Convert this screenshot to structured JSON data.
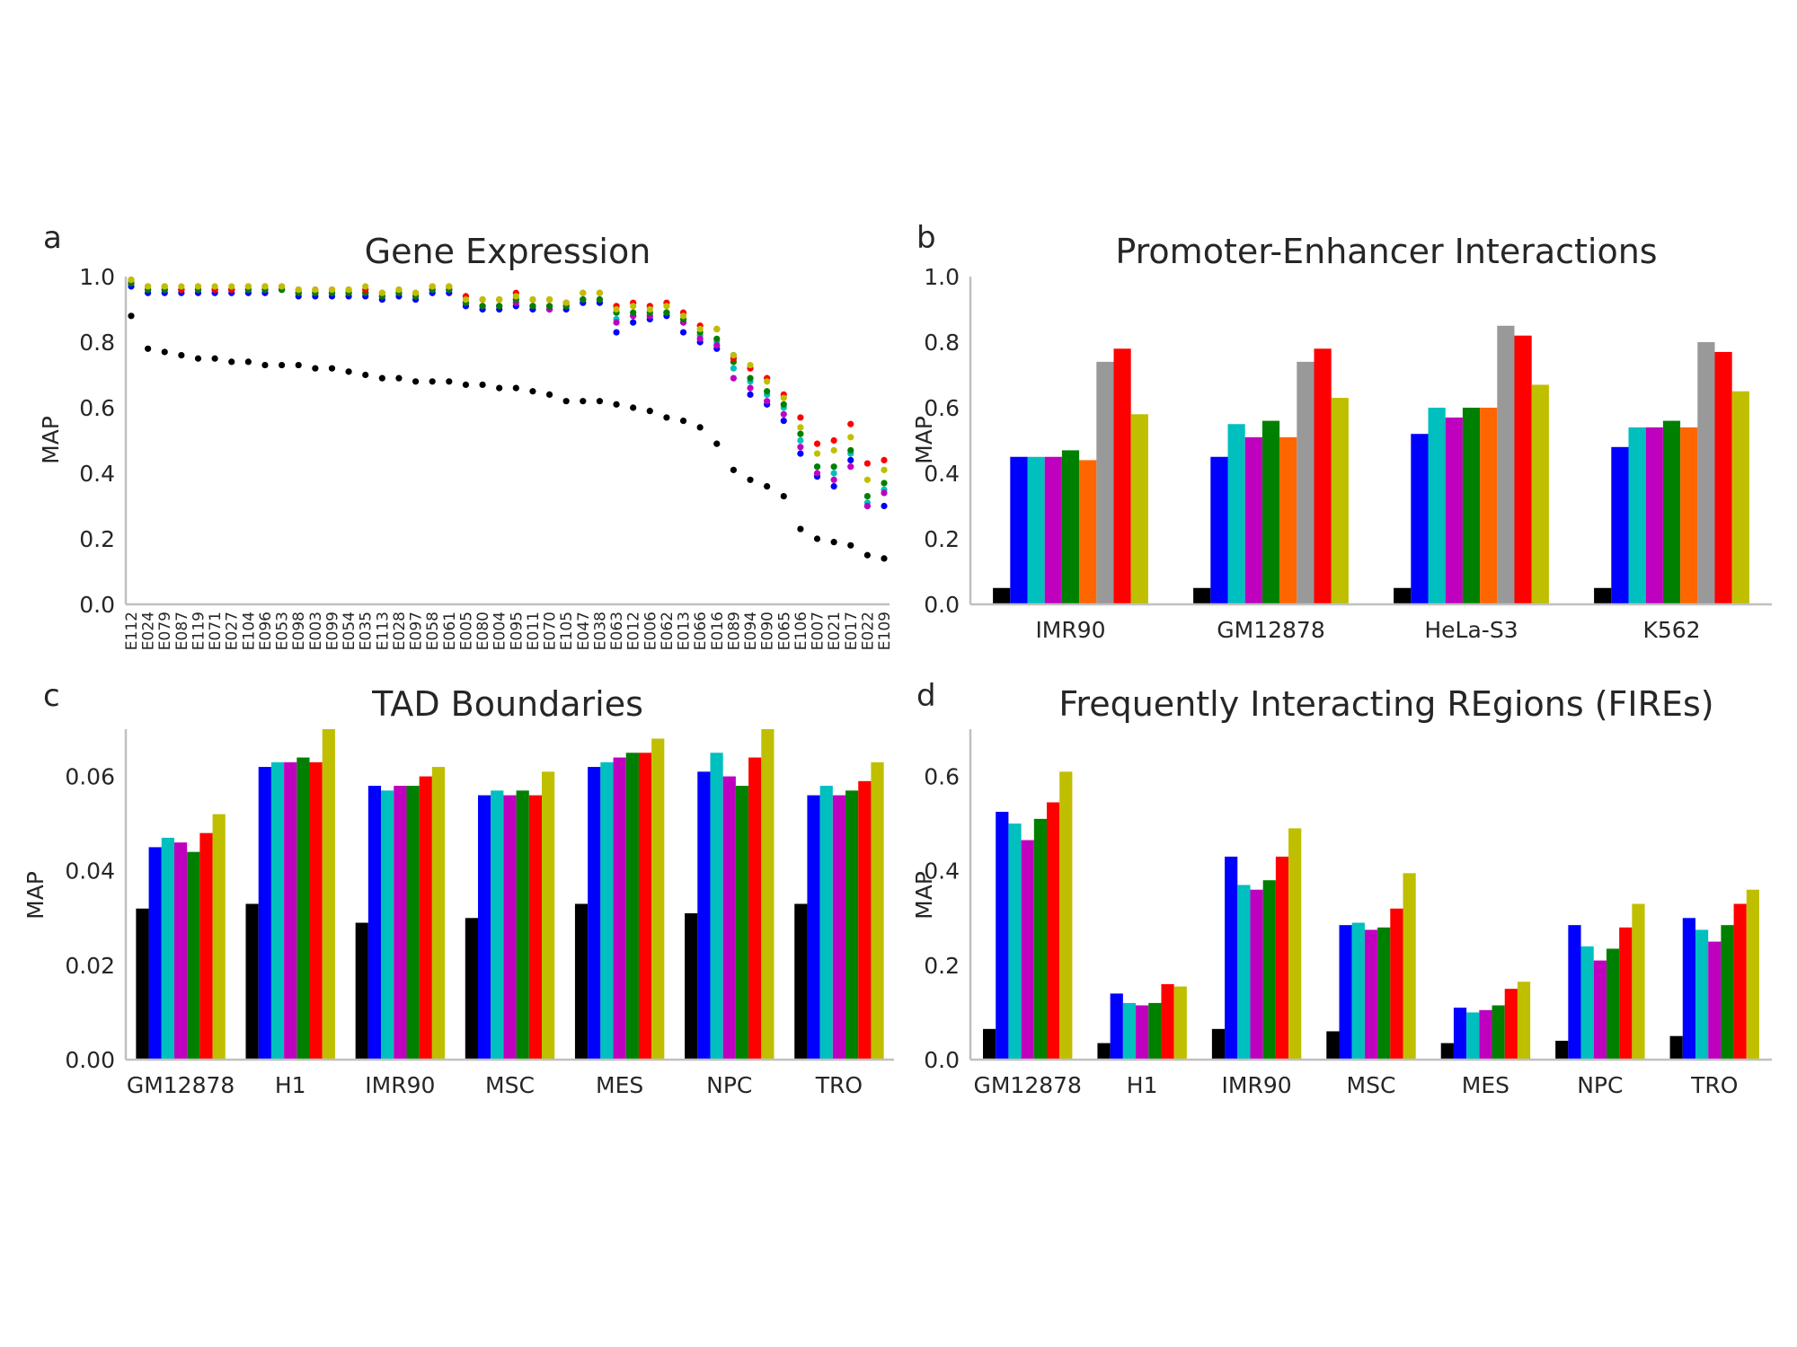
{
  "colors": [
    "#000000",
    "#0000ff",
    "#00bfbf",
    "#bf00bf",
    "#008000",
    "#ff6600",
    "#999999",
    "#ff0000",
    "#bfbf00"
  ],
  "chart_data": [
    {
      "panel": "a",
      "type": "scatter",
      "title": "Gene Expression",
      "ylabel": "MAP",
      "xlabel": "",
      "ylim": [
        0,
        1.0
      ],
      "yticks": [
        "0.0",
        "0.2",
        "0.4",
        "0.6",
        "0.8",
        "1.0"
      ],
      "grid": false,
      "categories": [
        "E112",
        "E024",
        "E079",
        "E087",
        "E119",
        "E071",
        "E027",
        "E104",
        "E096",
        "E053",
        "E098",
        "E003",
        "E099",
        "E054",
        "E035",
        "E113",
        "E028",
        "E097",
        "E058",
        "E061",
        "E005",
        "E080",
        "E004",
        "E095",
        "E011",
        "E070",
        "E105",
        "E047",
        "E038",
        "E063",
        "E012",
        "E006",
        "E062",
        "E013",
        "E066",
        "E016",
        "E089",
        "E094",
        "E090",
        "E065",
        "E106",
        "E007",
        "E021",
        "E017",
        "E022",
        "E109"
      ],
      "series": [
        {
          "color_index": 0,
          "values": [
            0.88,
            0.78,
            0.77,
            0.76,
            0.75,
            0.75,
            0.74,
            0.74,
            0.73,
            0.73,
            0.73,
            0.72,
            0.72,
            0.71,
            0.7,
            0.69,
            0.69,
            0.68,
            0.68,
            0.68,
            0.67,
            0.67,
            0.66,
            0.66,
            0.65,
            0.64,
            0.62,
            0.62,
            0.62,
            0.61,
            0.6,
            0.59,
            0.57,
            0.56,
            0.54,
            0.49,
            0.41,
            0.38,
            0.36,
            0.33,
            0.23,
            0.2,
            0.19,
            0.18,
            0.15,
            0.14
          ]
        },
        {
          "color_index": 1,
          "values": [
            0.97,
            0.95,
            0.95,
            0.95,
            0.95,
            0.95,
            0.95,
            0.95,
            0.95,
            0.96,
            0.94,
            0.94,
            0.94,
            0.94,
            0.94,
            0.93,
            0.94,
            0.93,
            0.95,
            0.95,
            0.91,
            0.9,
            0.9,
            0.91,
            0.9,
            0.9,
            0.9,
            0.92,
            0.92,
            0.83,
            0.86,
            0.87,
            0.88,
            0.83,
            0.8,
            0.78,
            0.76,
            0.64,
            0.61,
            0.56,
            0.46,
            0.39,
            0.36,
            0.44,
            0.3,
            0.3
          ]
        },
        {
          "color_index": 2,
          "values": [
            0.98,
            0.96,
            0.96,
            0.96,
            0.96,
            0.96,
            0.96,
            0.96,
            0.96,
            0.96,
            0.95,
            0.95,
            0.95,
            0.95,
            0.95,
            0.94,
            0.95,
            0.94,
            0.96,
            0.96,
            0.92,
            0.91,
            0.91,
            0.93,
            0.91,
            0.91,
            0.91,
            0.93,
            0.93,
            0.87,
            0.88,
            0.88,
            0.89,
            0.86,
            0.82,
            0.8,
            0.72,
            0.68,
            0.64,
            0.6,
            0.5,
            0.42,
            0.4,
            0.46,
            0.31,
            0.35
          ]
        },
        {
          "color_index": 3,
          "values": [
            0.98,
            0.96,
            0.96,
            0.96,
            0.96,
            0.96,
            0.96,
            0.96,
            0.96,
            0.96,
            0.95,
            0.95,
            0.95,
            0.95,
            0.95,
            0.94,
            0.95,
            0.94,
            0.96,
            0.96,
            0.92,
            0.91,
            0.91,
            0.92,
            0.91,
            0.9,
            0.91,
            0.93,
            0.93,
            0.86,
            0.88,
            0.88,
            0.89,
            0.86,
            0.81,
            0.79,
            0.69,
            0.66,
            0.62,
            0.58,
            0.48,
            0.4,
            0.38,
            0.42,
            0.3,
            0.34
          ]
        },
        {
          "color_index": 4,
          "values": [
            0.98,
            0.96,
            0.96,
            0.96,
            0.96,
            0.96,
            0.96,
            0.96,
            0.96,
            0.96,
            0.95,
            0.95,
            0.95,
            0.95,
            0.95,
            0.94,
            0.95,
            0.94,
            0.96,
            0.96,
            0.92,
            0.91,
            0.91,
            0.93,
            0.91,
            0.91,
            0.91,
            0.93,
            0.93,
            0.89,
            0.89,
            0.89,
            0.89,
            0.87,
            0.83,
            0.81,
            0.74,
            0.69,
            0.65,
            0.61,
            0.52,
            0.42,
            0.42,
            0.47,
            0.33,
            0.37
          ]
        },
        {
          "color_index": 7,
          "values": [
            0.99,
            0.97,
            0.97,
            0.96,
            0.97,
            0.96,
            0.96,
            0.97,
            0.97,
            0.97,
            0.96,
            0.96,
            0.96,
            0.96,
            0.96,
            0.95,
            0.96,
            0.95,
            0.97,
            0.97,
            0.94,
            0.93,
            0.93,
            0.95,
            0.93,
            0.93,
            0.92,
            0.95,
            0.95,
            0.91,
            0.92,
            0.91,
            0.92,
            0.89,
            0.85,
            0.84,
            0.75,
            0.72,
            0.69,
            0.64,
            0.57,
            0.49,
            0.5,
            0.55,
            0.43,
            0.44
          ]
        },
        {
          "color_index": 8,
          "values": [
            0.99,
            0.97,
            0.97,
            0.97,
            0.97,
            0.97,
            0.97,
            0.97,
            0.97,
            0.97,
            0.96,
            0.96,
            0.96,
            0.96,
            0.97,
            0.95,
            0.96,
            0.95,
            0.97,
            0.97,
            0.93,
            0.93,
            0.93,
            0.94,
            0.93,
            0.93,
            0.92,
            0.95,
            0.95,
            0.9,
            0.91,
            0.9,
            0.91,
            0.88,
            0.84,
            0.84,
            0.76,
            0.73,
            0.68,
            0.63,
            0.54,
            0.46,
            0.47,
            0.51,
            0.38,
            0.41
          ]
        }
      ]
    },
    {
      "panel": "b",
      "type": "bar",
      "title": "Promoter-Enhancer Interactions",
      "ylabel": "MAP",
      "ylim": [
        0,
        1.0
      ],
      "yticks": [
        "0.0",
        "0.2",
        "0.4",
        "0.6",
        "0.8",
        "1.0"
      ],
      "grid": false,
      "categories": [
        "IMR90",
        "GM12878",
        "HeLa-S3",
        "K562"
      ],
      "color_indices": [
        0,
        1,
        2,
        3,
        4,
        5,
        6,
        7,
        8
      ],
      "values": [
        [
          0.05,
          0.45,
          0.45,
          0.45,
          0.47,
          0.44,
          0.74,
          0.78,
          0.58
        ],
        [
          0.05,
          0.45,
          0.55,
          0.51,
          0.56,
          0.51,
          0.74,
          0.78,
          0.63
        ],
        [
          0.05,
          0.52,
          0.6,
          0.57,
          0.6,
          0.6,
          0.85,
          0.82,
          0.67
        ],
        [
          0.05,
          0.48,
          0.54,
          0.54,
          0.56,
          0.54,
          0.8,
          0.77,
          0.65
        ]
      ]
    },
    {
      "panel": "c",
      "type": "bar",
      "title": "TAD Boundaries",
      "ylabel": "MAP",
      "ylim": [
        0,
        0.07
      ],
      "yticks": [
        "0.00",
        "0.02",
        "0.04",
        "0.06"
      ],
      "grid": false,
      "categories": [
        "GM12878",
        "H1",
        "IMR90",
        "MSC",
        "MES",
        "NPC",
        "TRO"
      ],
      "color_indices": [
        0,
        1,
        2,
        3,
        4,
        7,
        8
      ],
      "values": [
        [
          0.032,
          0.045,
          0.047,
          0.046,
          0.044,
          0.048,
          0.052
        ],
        [
          0.033,
          0.062,
          0.063,
          0.063,
          0.064,
          0.063,
          0.07
        ],
        [
          0.029,
          0.058,
          0.057,
          0.058,
          0.058,
          0.06,
          0.062
        ],
        [
          0.03,
          0.056,
          0.057,
          0.056,
          0.057,
          0.056,
          0.061
        ],
        [
          0.033,
          0.062,
          0.063,
          0.064,
          0.065,
          0.065,
          0.068
        ],
        [
          0.031,
          0.061,
          0.065,
          0.06,
          0.058,
          0.064,
          0.07
        ],
        [
          0.033,
          0.056,
          0.058,
          0.056,
          0.057,
          0.059,
          0.063
        ]
      ]
    },
    {
      "panel": "d",
      "type": "bar",
      "title": "Frequently Interacting REgions (FIREs)",
      "ylabel": "MAP",
      "ylim": [
        0,
        0.7
      ],
      "yticks": [
        "0.0",
        "0.2",
        "0.4",
        "0.6"
      ],
      "grid": false,
      "categories": [
        "GM12878",
        "H1",
        "IMR90",
        "MSC",
        "MES",
        "NPC",
        "TRO"
      ],
      "color_indices": [
        0,
        1,
        2,
        3,
        4,
        7,
        8
      ],
      "values": [
        [
          0.065,
          0.525,
          0.5,
          0.465,
          0.51,
          0.545,
          0.61
        ],
        [
          0.035,
          0.14,
          0.12,
          0.115,
          0.12,
          0.16,
          0.155
        ],
        [
          0.065,
          0.43,
          0.37,
          0.36,
          0.38,
          0.43,
          0.49
        ],
        [
          0.06,
          0.285,
          0.29,
          0.275,
          0.28,
          0.32,
          0.395
        ],
        [
          0.035,
          0.11,
          0.1,
          0.105,
          0.115,
          0.15,
          0.165
        ],
        [
          0.04,
          0.285,
          0.24,
          0.21,
          0.235,
          0.28,
          0.33
        ],
        [
          0.05,
          0.3,
          0.275,
          0.25,
          0.285,
          0.33,
          0.36
        ]
      ]
    }
  ]
}
